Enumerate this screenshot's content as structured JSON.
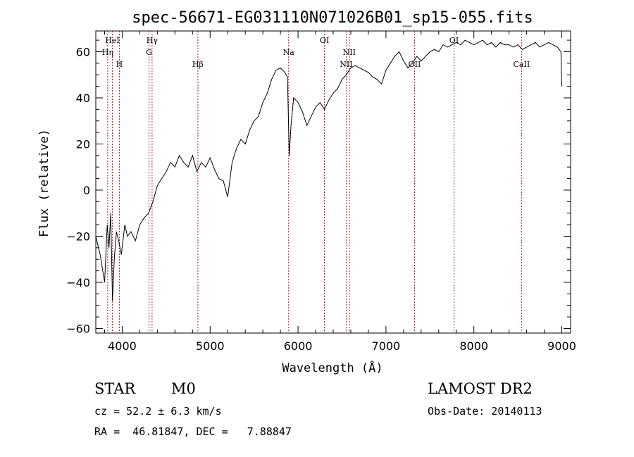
{
  "chart_data": {
    "type": "line",
    "title": "spec-56671-EG031110N071026B01_sp15-055.fits",
    "xlabel": "Wavelength (Å)",
    "ylabel": "Flux (relative)",
    "xlim": [
      3700,
      9100
    ],
    "ylim": [
      -62,
      69
    ],
    "xticks": [
      4000,
      5000,
      6000,
      7000,
      8000,
      9000
    ],
    "yticks": [
      -60,
      -40,
      -20,
      0,
      20,
      40,
      60
    ],
    "grid": false,
    "legend": "none",
    "line_color": "#000000",
    "marker_color": "#b22222",
    "series": [
      {
        "x": [
          3700,
          3750,
          3800,
          3830,
          3850,
          3870,
          3890,
          3910,
          3935,
          3960,
          3990,
          4030,
          4060,
          4100,
          4150,
          4200,
          4250,
          4300,
          4350,
          4400,
          4450,
          4500,
          4550,
          4600,
          4650,
          4700,
          4750,
          4800,
          4850,
          4900,
          4950,
          5000,
          5050,
          5100,
          5150,
          5200,
          5250,
          5300,
          5350,
          5400,
          5450,
          5500,
          5550,
          5600,
          5650,
          5700,
          5750,
          5800,
          5850,
          5880,
          5900,
          5920,
          5950,
          6000,
          6050,
          6100,
          6150,
          6200,
          6250,
          6300,
          6350,
          6400,
          6450,
          6500,
          6550,
          6600,
          6650,
          6700,
          6750,
          6800,
          6850,
          6900,
          6950,
          7000,
          7050,
          7100,
          7150,
          7200,
          7250,
          7300,
          7350,
          7400,
          7450,
          7500,
          7550,
          7600,
          7650,
          7700,
          7750,
          7800,
          7850,
          7900,
          7950,
          8000,
          8050,
          8100,
          8150,
          8200,
          8250,
          8300,
          8350,
          8400,
          8450,
          8500,
          8550,
          8600,
          8650,
          8700,
          8750,
          8800,
          8850,
          8900,
          8950,
          8990,
          9000
        ],
        "y": [
          -20,
          -28,
          -40,
          -15,
          -25,
          -10,
          -48,
          -30,
          -18,
          -22,
          -28,
          -15,
          -20,
          -18,
          -22,
          -15,
          -12,
          -10,
          -5,
          2,
          5,
          8,
          12,
          10,
          15,
          12,
          10,
          15,
          8,
          12,
          10,
          14,
          9,
          5,
          4,
          -3,
          12,
          18,
          22,
          20,
          26,
          30,
          32,
          38,
          42,
          48,
          52,
          53,
          51,
          49,
          15,
          28,
          40,
          38,
          34,
          28,
          32,
          36,
          38,
          35,
          39,
          42,
          44,
          48,
          50,
          53,
          54,
          53,
          52,
          51,
          49,
          48,
          46,
          52,
          55,
          58,
          60,
          56,
          53,
          55,
          58,
          56,
          58,
          60,
          61,
          60,
          63,
          62,
          63,
          64,
          63,
          65,
          64,
          63,
          64,
          65,
          63,
          64,
          62,
          64,
          63,
          63,
          62,
          63,
          61,
          62,
          63,
          64,
          62,
          63,
          64,
          63,
          62,
          60,
          45
        ]
      }
    ],
    "spectral_lines": [
      {
        "name": "HeI",
        "x": 3889,
        "row": 1
      },
      {
        "name": "Hη",
        "x": 3835,
        "row": 2
      },
      {
        "name": "H",
        "x": 3968,
        "row": 3
      },
      {
        "name": "Hγ",
        "x": 4340,
        "row": 1
      },
      {
        "name": "G",
        "x": 4305,
        "row": 2
      },
      {
        "name": "Hβ",
        "x": 4861,
        "row": 3
      },
      {
        "name": "Na",
        "x": 5893,
        "row": 2
      },
      {
        "name": "OI",
        "x": 6300,
        "row": 1
      },
      {
        "name": "NII",
        "x": 6583,
        "row": 2
      },
      {
        "name": "NII",
        "x": 6548,
        "row": 3
      },
      {
        "name": "OII",
        "x": 7325,
        "row": 3
      },
      {
        "name": "OI",
        "x": 7774,
        "row": 1
      },
      {
        "name": "CaII",
        "x": 8542,
        "row": 3
      }
    ]
  },
  "info": {
    "object_class": "STAR",
    "subclass": "M0",
    "survey": "LAMOST DR2",
    "redshift": "cz = 52.2 ± 6.3 km/s",
    "obs_date": "Obs-Date: 20140113",
    "coords": "RA =  46.81847, DEC =   7.88847"
  }
}
